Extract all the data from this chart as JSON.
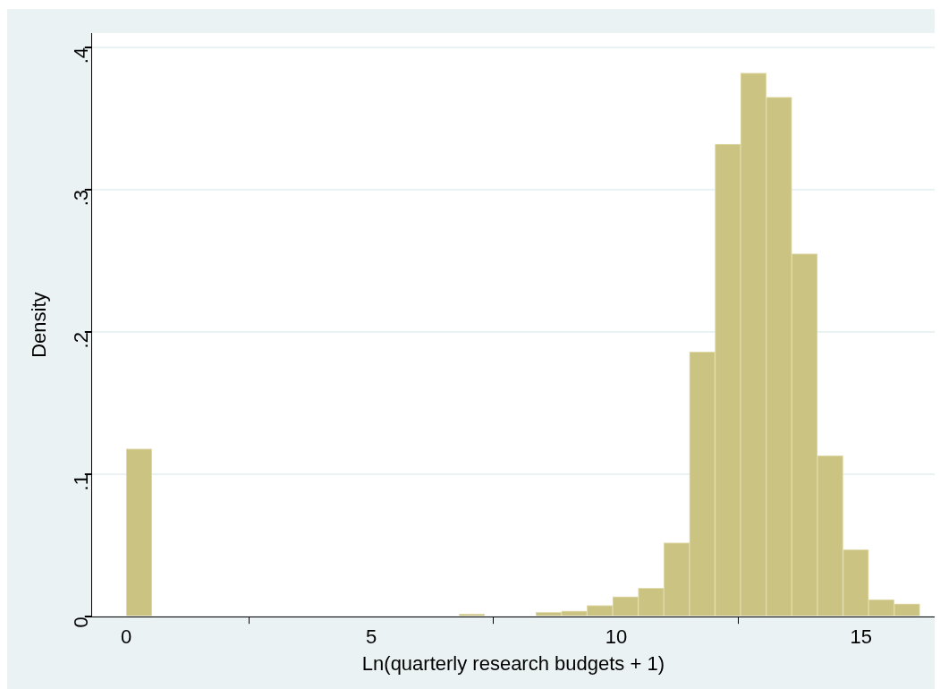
{
  "chart_data": {
    "type": "histogram",
    "xlabel": "Ln(quarterly research budgets + 1)",
    "ylabel": "Density",
    "bins": [
      0,
      0.523,
      1.045,
      1.568,
      2.09,
      2.613,
      3.135,
      3.658,
      4.18,
      4.703,
      5.225,
      5.748,
      6.27,
      6.793,
      7.315,
      7.838,
      8.36,
      8.883,
      9.405,
      9.928,
      10.45,
      10.973,
      11.495,
      12.018,
      12.54,
      13.063,
      13.585,
      14.108,
      14.63,
      15.153,
      15.675,
      16.198
    ],
    "values": [
      0.118,
      0,
      0,
      0,
      0,
      0,
      0,
      0,
      0,
      0,
      0,
      0,
      0,
      0.002,
      0,
      0,
      0.003,
      0.004,
      0.008,
      0.014,
      0.02,
      0.052,
      0.186,
      0.332,
      0.382,
      0.365,
      0.255,
      0.113,
      0.047,
      0.012,
      0.009
    ],
    "color": "#cbc382",
    "xlim": [
      -0.7,
      16.5
    ],
    "xticks": [
      0,
      5,
      10,
      15
    ],
    "ylim": [
      0,
      0.41
    ],
    "yticks": [
      0,
      {
        "value": 0.1,
        "label": ".1"
      },
      {
        "value": 0.2,
        "label": ".2"
      },
      {
        "value": 0.3,
        "label": ".3"
      },
      {
        "value": 0.4,
        "label": ".4"
      }
    ],
    "grid": "y"
  }
}
